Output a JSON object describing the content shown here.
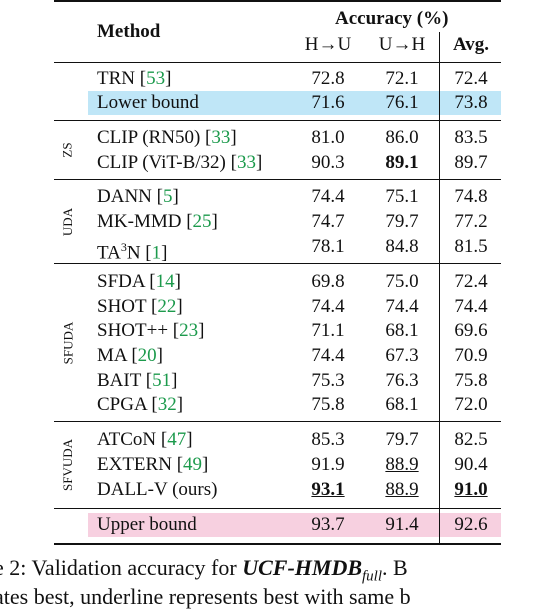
{
  "header": {
    "method": "Method",
    "accuracy": "Accuracy (%)",
    "col1": "H→U",
    "col2": "U→H",
    "col3": "Avg."
  },
  "colors": {
    "lower_bound_bg": "#bfe6f7",
    "upper_bound_bg": "#f7d0e0",
    "citation": "#1c9a4c"
  },
  "groups": {
    "zs": "ZS",
    "uda": "UDA",
    "sfuda": "SFUDA",
    "sfvuda": "SFVUDA"
  },
  "rows": [
    {
      "name": "TRN",
      "cite": "53",
      "h2u": "72.8",
      "u2h": "72.1",
      "avg": "72.4"
    },
    {
      "name": "Lower bound",
      "h2u": "71.6",
      "u2h": "76.1",
      "avg": "73.8"
    },
    {
      "name": "CLIP (RN50)",
      "cite": "33",
      "h2u": "81.0",
      "u2h": "86.0",
      "avg": "83.5"
    },
    {
      "name": "CLIP (ViT-B/32)",
      "cite": "33",
      "h2u": "90.3",
      "u2h": "89.1",
      "avg": "89.7"
    },
    {
      "name": "DANN",
      "cite": "5",
      "h2u": "74.4",
      "u2h": "75.1",
      "avg": "74.8"
    },
    {
      "name": "MK-MMD",
      "cite": "25",
      "h2u": "74.7",
      "u2h": "79.7",
      "avg": "77.2"
    },
    {
      "name_pre": "TA",
      "name_sup": "3",
      "name_post": "N",
      "cite": "1",
      "h2u": "78.1",
      "u2h": "84.8",
      "avg": "81.5"
    },
    {
      "name": "SFDA",
      "cite": "14",
      "h2u": "69.8",
      "u2h": "75.0",
      "avg": "72.4"
    },
    {
      "name": "SHOT",
      "cite": "22",
      "h2u": "74.4",
      "u2h": "74.4",
      "avg": "74.4"
    },
    {
      "name": "SHOT++",
      "cite": "23",
      "h2u": "71.1",
      "u2h": "68.1",
      "avg": "69.6"
    },
    {
      "name": "MA",
      "cite": "20",
      "h2u": "74.4",
      "u2h": "67.3",
      "avg": "70.9"
    },
    {
      "name": "BAIT",
      "cite": "51",
      "h2u": "75.3",
      "u2h": "76.3",
      "avg": "75.8"
    },
    {
      "name": "CPGA",
      "cite": "32",
      "h2u": "75.8",
      "u2h": "68.1",
      "avg": "72.0"
    },
    {
      "name": "ATCoN",
      "cite": "47",
      "h2u": "85.3",
      "u2h": "79.7",
      "avg": "82.5"
    },
    {
      "name": "EXTERN",
      "cite": "49",
      "h2u": "91.9",
      "u2h": "88.9",
      "avg": "90.4"
    },
    {
      "name": "DALL-V (ours)",
      "h2u": "93.1",
      "u2h": "88.9",
      "avg": "91.0"
    },
    {
      "name": "Upper bound",
      "h2u": "93.7",
      "u2h": "91.4",
      "avg": "92.6"
    }
  ],
  "caption": {
    "prefix": "e 2: Validation accuracy for ",
    "dataset": "UCF-HMDB",
    "subscript": "full",
    "suffix": ".  B",
    "line2": "ates best, underline represents best with same b"
  }
}
